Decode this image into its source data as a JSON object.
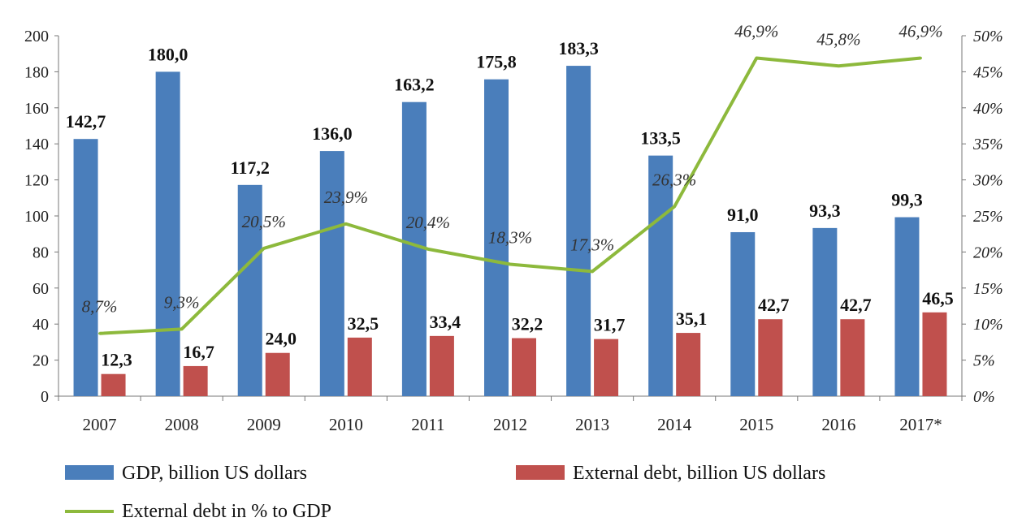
{
  "chart_data": {
    "type": "bar",
    "categories": [
      "2007",
      "2008",
      "2009",
      "2010",
      "2011",
      "2012",
      "2013",
      "2014",
      "2015",
      "2016",
      "2017*"
    ],
    "series": [
      {
        "name": "GDP, billion US dollars",
        "type": "bar",
        "axis": "left",
        "color": "#4a7ebb",
        "values": [
          142.7,
          180.0,
          117.2,
          136.0,
          163.2,
          175.8,
          183.3,
          133.5,
          91.0,
          93.3,
          99.3
        ],
        "labels": [
          "142,7",
          "180,0",
          "117,2",
          "136,0",
          "163,2",
          "175,8",
          "183,3",
          "133,5",
          "91,0",
          "93,3",
          "99,3"
        ]
      },
      {
        "name": "External debt, billion US dollars",
        "type": "bar",
        "axis": "left",
        "color": "#c0504d",
        "values": [
          12.3,
          16.7,
          24.0,
          32.5,
          33.4,
          32.2,
          31.7,
          35.1,
          42.7,
          42.7,
          46.5
        ],
        "labels": [
          "12,3",
          "16,7",
          "24,0",
          "32,5",
          "33,4",
          "32,2",
          "31,7",
          "35,1",
          "42,7",
          "42,7",
          "46,5"
        ]
      },
      {
        "name": "External debt in % to GDP",
        "type": "line",
        "axis": "right",
        "color": "#8db93c",
        "values": [
          8.7,
          9.3,
          20.5,
          23.9,
          20.4,
          18.3,
          17.3,
          26.3,
          46.9,
          45.8,
          46.9
        ],
        "labels": [
          "8,7%",
          "9,3%",
          "20,5%",
          "23,9%",
          "20,4%",
          "18,3%",
          "17,3%",
          "26,3%",
          "46,9%",
          "45,8%",
          "46,9%"
        ]
      }
    ],
    "y_left": {
      "range": [
        0,
        200
      ],
      "ticks": [
        "0",
        "20",
        "40",
        "60",
        "80",
        "100",
        "120",
        "140",
        "160",
        "180",
        "200"
      ]
    },
    "y_right": {
      "range": [
        0,
        50
      ],
      "ticks": [
        "0%",
        "5%",
        "10%",
        "15%",
        "20%",
        "25%",
        "30%",
        "35%",
        "40%",
        "45%",
        "50%"
      ]
    },
    "legend_position": "bottom",
    "grid": false
  }
}
